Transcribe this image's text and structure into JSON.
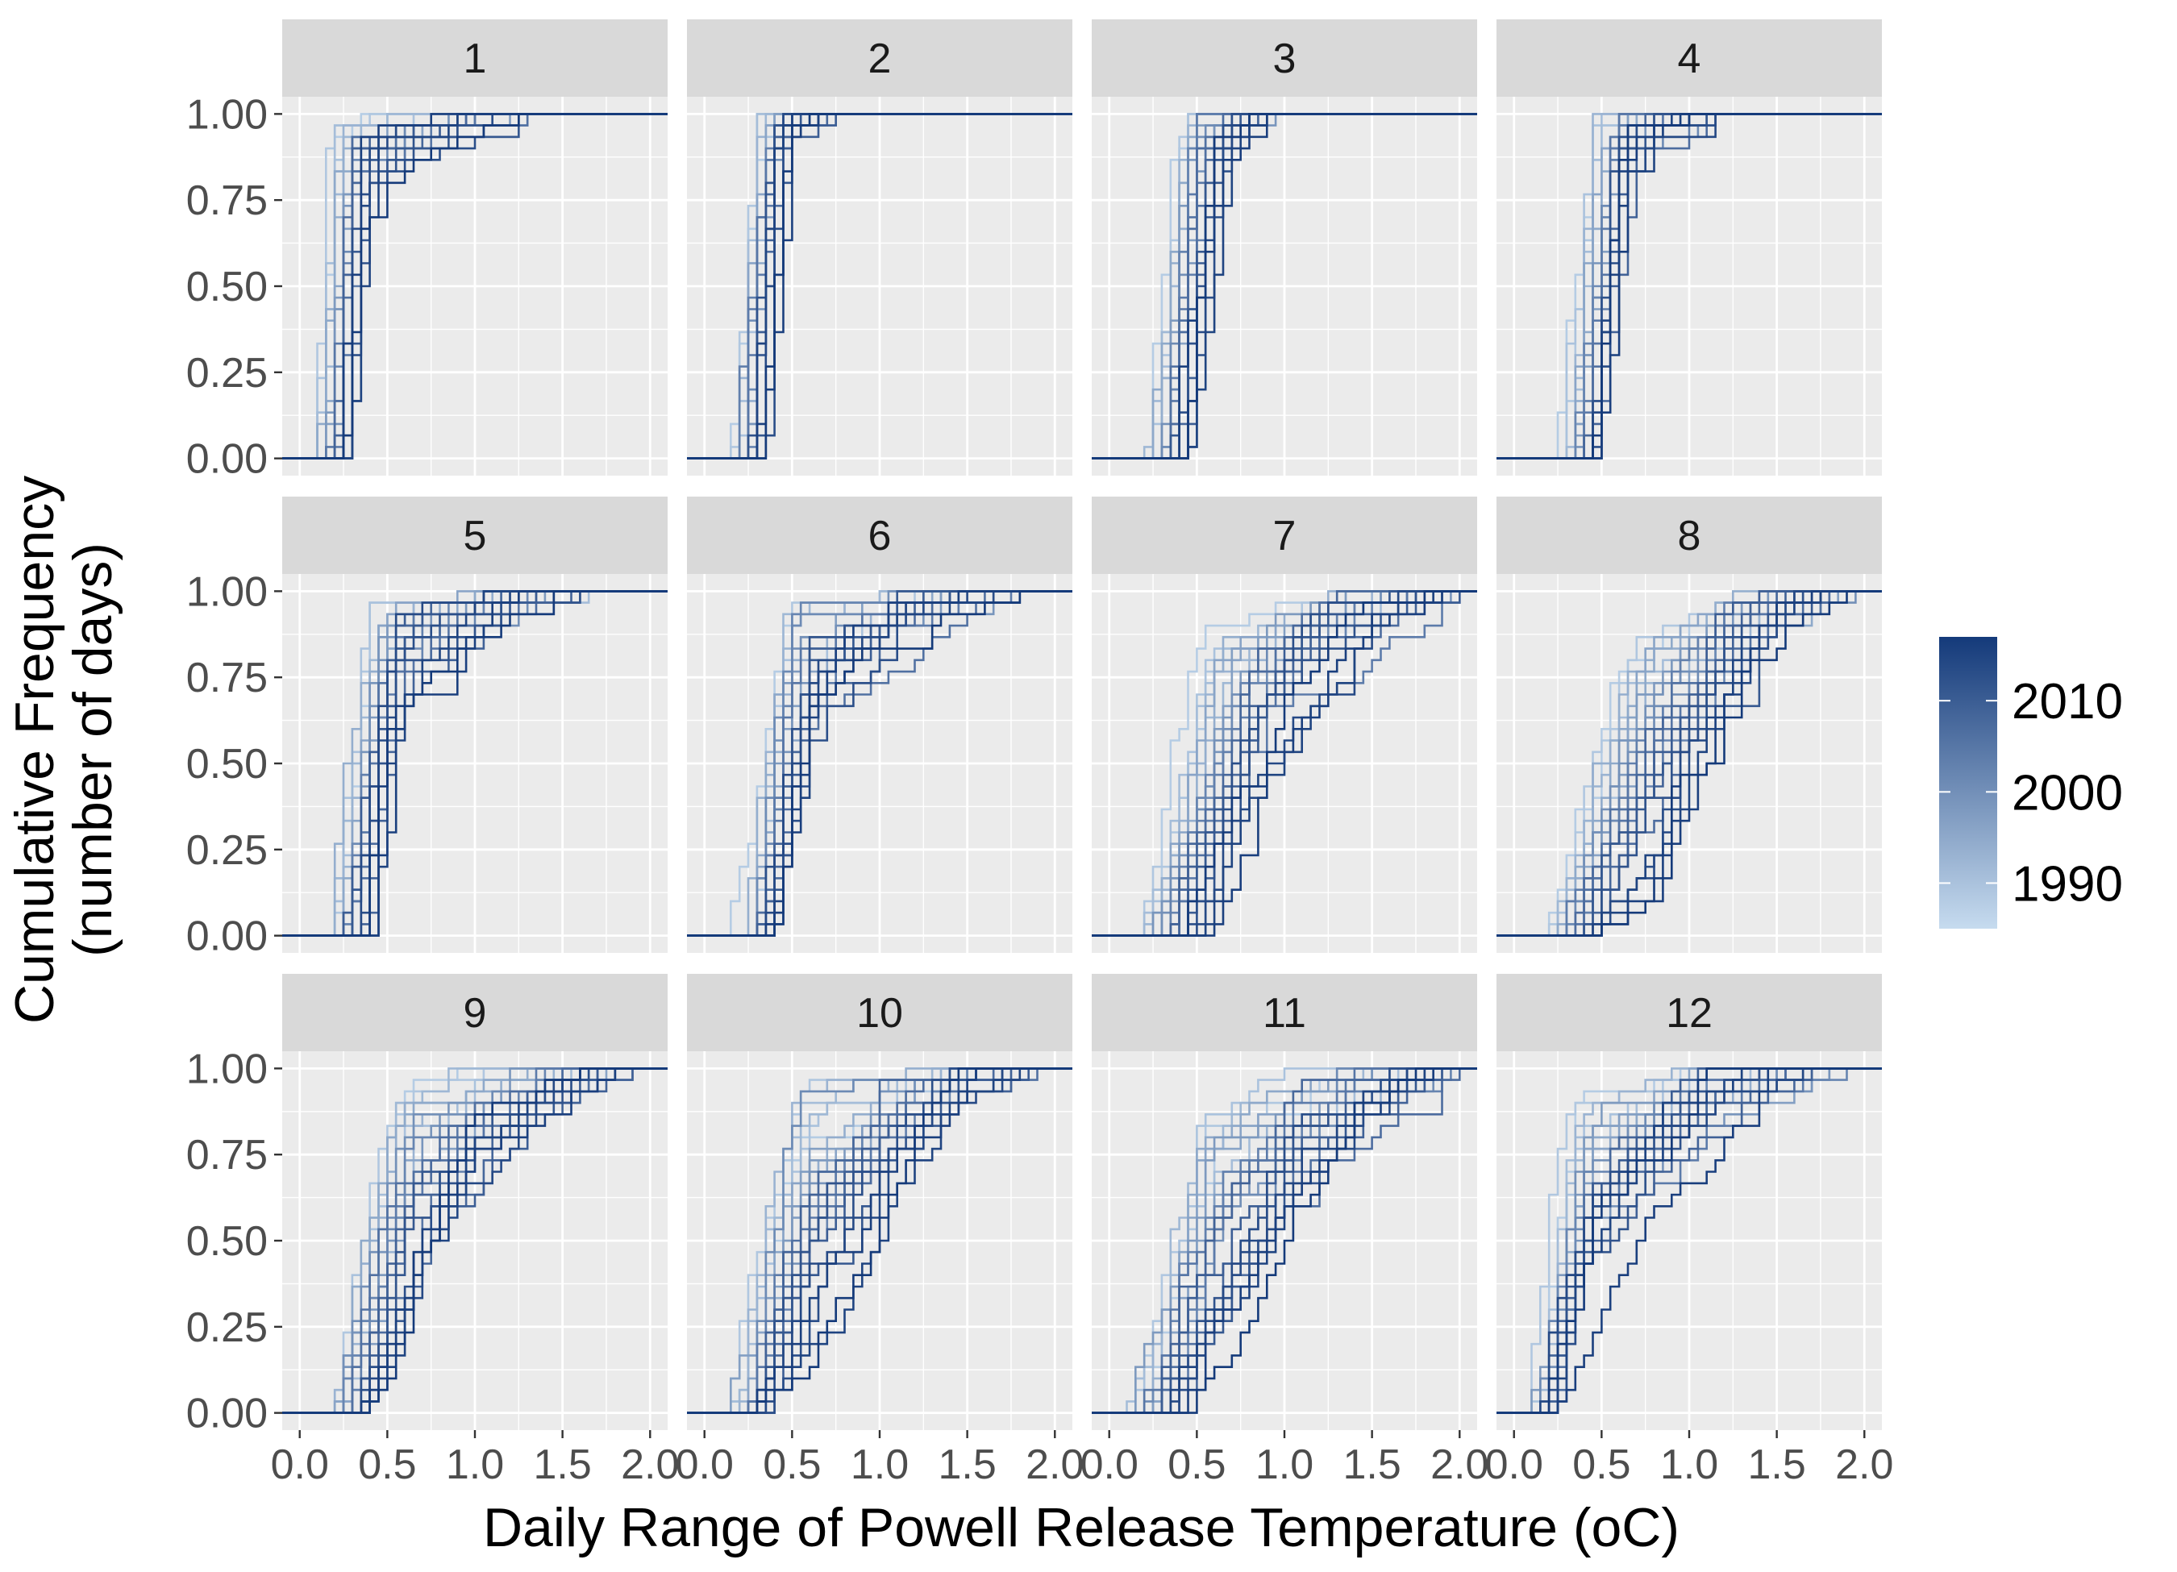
{
  "chart_data": {
    "type": "line",
    "subtype": "step-ecdf-faceted",
    "xlabel": "Daily Range of Powell Release Temperature (oC)",
    "ylabel": [
      "Cumulative Frequency",
      "(number of days)"
    ],
    "xlim": [
      -0.1,
      2.1
    ],
    "ylim": [
      0,
      1
    ],
    "xticks": [
      0,
      0.5,
      1,
      1.5,
      2
    ],
    "xtick_labels": [
      "0.0",
      "0.5",
      "1.0",
      "1.5",
      "2.0"
    ],
    "yticks": [
      0,
      0.25,
      0.5,
      0.75,
      1
    ],
    "ytick_labels": [
      "0.00",
      "0.25",
      "0.50",
      "0.75",
      "1.00"
    ],
    "grid": true,
    "legend": {
      "placement": "right",
      "type": "colorbar",
      "labels": [
        "2010",
        "2000",
        "1990"
      ],
      "values": [
        2010,
        2000,
        1990
      ],
      "range": [
        1985,
        2017
      ],
      "color_low": "#c6dbef",
      "color_high": "#143a7a"
    },
    "colors": {
      "panel_background": "#ebebeb",
      "strip_background": "#d9d9d9",
      "grid": "#ffffff",
      "line_low": "#c6dbef",
      "line_high": "#143a7a"
    },
    "year_range": [
      1988,
      2017
    ],
    "facets": [
      {
        "label": "1",
        "series_spec": {
          "c_start": 0.14,
          "c_end": 0.36,
          "spread": 0.05,
          "tail": 0.1,
          "tail_max": 1.45
        }
      },
      {
        "label": "2",
        "series_spec": {
          "c_start": 0.26,
          "c_end": 0.4,
          "spread": 0.06,
          "tail": 0.07,
          "tail_max": 0.78
        }
      },
      {
        "label": "3",
        "series_spec": {
          "c_start": 0.32,
          "c_end": 0.56,
          "spread": 0.08,
          "tail": 0.1,
          "tail_max": 1.0
        }
      },
      {
        "label": "4",
        "series_spec": {
          "c_start": 0.4,
          "c_end": 0.58,
          "spread": 0.08,
          "tail": 0.1,
          "tail_max": 1.3
        }
      },
      {
        "label": "5",
        "series_spec": {
          "c_start": 0.32,
          "c_end": 0.5,
          "spread": 0.1,
          "tail": 0.2,
          "tail_max": 1.7
        }
      },
      {
        "label": "6",
        "series_spec": {
          "c_start": 0.36,
          "c_end": 0.52,
          "spread": 0.1,
          "tail": 0.22,
          "tail_max": 1.9
        }
      },
      {
        "label": "7",
        "series_spec": {
          "c_start": 0.4,
          "c_end": 0.72,
          "spread": 0.16,
          "tail": 0.35,
          "tail_max": 2.05
        }
      },
      {
        "label": "8",
        "series_spec": {
          "c_start": 0.42,
          "c_end": 0.72,
          "spread": 0.18,
          "tail": 0.45,
          "tail_max": 2.0
        }
      },
      {
        "label": "9",
        "series_spec": {
          "c_start": 0.36,
          "c_end": 0.55,
          "spread": 0.14,
          "tail": 0.4,
          "tail_max": 1.95
        }
      },
      {
        "label": "10",
        "series_spec": {
          "c_start": 0.38,
          "c_end": 0.52,
          "spread": 0.14,
          "tail": 0.45,
          "tail_max": 2.0
        }
      },
      {
        "label": "11",
        "series_spec": {
          "c_start": 0.36,
          "c_end": 0.55,
          "spread": 0.16,
          "tail": 0.5,
          "tail_max": 2.05
        }
      },
      {
        "label": "12",
        "series_spec": {
          "c_start": 0.26,
          "c_end": 0.36,
          "spread": 0.1,
          "tail": 0.35,
          "tail_max": 1.95
        }
      }
    ]
  }
}
